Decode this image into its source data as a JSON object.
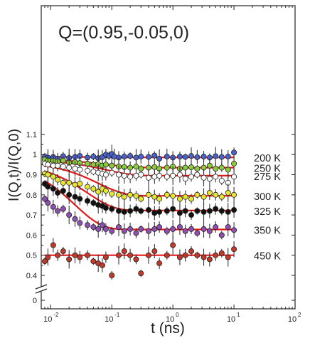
{
  "chart_data": {
    "type": "scatter",
    "title": "Q=(0.95,-0.05,0)",
    "xlabel": "t (ns)",
    "ylabel": "I(Q,t)/I(Q,0)",
    "xscale": "log",
    "xlim": [
      0.007,
      100
    ],
    "ylim": [
      0.37,
      1.15
    ],
    "y_axis_break": true,
    "x_ticks": [
      {
        "value": 0.01,
        "label": "10",
        "exp": "-2"
      },
      {
        "value": 0.1,
        "label": "10",
        "exp": "-1"
      },
      {
        "value": 1,
        "label": "10",
        "exp": "0"
      },
      {
        "value": 10,
        "label": "10",
        "exp": "1"
      },
      {
        "value": 100,
        "label": "10",
        "exp": "2"
      }
    ],
    "y_ticks": [
      {
        "value": 0.4,
        "label": "0.4"
      },
      {
        "value": 0.5,
        "label": "0.5"
      },
      {
        "value": 0.6,
        "label": "0.6"
      },
      {
        "value": 0.7,
        "label": "0.7"
      },
      {
        "value": 0.8,
        "label": "0.8"
      },
      {
        "value": 0.9,
        "label": "0.9"
      },
      {
        "value": 1.0,
        "label": "1"
      },
      {
        "value": 1.1,
        "label": "1.1"
      },
      {
        "value": 0.0,
        "label": "0",
        "break_position": 0.345
      }
    ],
    "grid": false,
    "series": [
      {
        "name": "200 K",
        "color": "#4a62c8",
        "fit": {
          "y0": 0.99,
          "yinf": 0.986,
          "tau": 0.05
        },
        "points": [
          [
            0.008,
            0.99
          ],
          [
            0.009,
            0.985
          ],
          [
            0.011,
            0.988
          ],
          [
            0.013,
            0.98
          ],
          [
            0.016,
            0.992
          ],
          [
            0.02,
            0.983
          ],
          [
            0.025,
            0.988
          ],
          [
            0.03,
            0.993
          ],
          [
            0.04,
            0.985
          ],
          [
            0.05,
            0.99
          ],
          [
            0.06,
            0.982
          ],
          [
            0.07,
            0.987
          ],
          [
            0.08,
            1.0
          ],
          [
            0.09,
            0.993
          ],
          [
            0.1,
            1.003
          ],
          [
            0.11,
            0.99
          ],
          [
            0.13,
            0.985
          ],
          [
            0.16,
            0.99
          ],
          [
            0.2,
            0.993
          ],
          [
            0.25,
            0.985
          ],
          [
            0.3,
            0.99
          ],
          [
            0.4,
            0.988
          ],
          [
            0.5,
            0.995
          ],
          [
            0.6,
            0.98
          ],
          [
            0.8,
            0.99
          ],
          [
            1.0,
            0.985
          ],
          [
            1.3,
            0.99
          ],
          [
            1.6,
            0.988
          ],
          [
            2.0,
            0.993
          ],
          [
            2.5,
            0.987
          ],
          [
            3.2,
            0.99
          ],
          [
            4.0,
            0.985
          ],
          [
            5.0,
            0.992
          ],
          [
            6.3,
            0.988
          ],
          [
            8.0,
            0.99
          ],
          [
            10.0,
            1.01
          ]
        ]
      },
      {
        "name": "250 K",
        "color": "#8ccc3c",
        "fit": {
          "y0": 0.978,
          "yinf": 0.935,
          "tau": 0.08
        },
        "points": [
          [
            0.008,
            0.975
          ],
          [
            0.009,
            0.97
          ],
          [
            0.011,
            0.97
          ],
          [
            0.013,
            0.965
          ],
          [
            0.016,
            0.97
          ],
          [
            0.02,
            0.96
          ],
          [
            0.025,
            0.962
          ],
          [
            0.03,
            0.958
          ],
          [
            0.04,
            0.955
          ],
          [
            0.05,
            0.95
          ],
          [
            0.06,
            0.952
          ],
          [
            0.07,
            0.945
          ],
          [
            0.08,
            0.95
          ],
          [
            0.1,
            0.945
          ],
          [
            0.13,
            0.94
          ],
          [
            0.16,
            0.938
          ],
          [
            0.2,
            0.935
          ],
          [
            0.25,
            0.94
          ],
          [
            0.3,
            0.93
          ],
          [
            0.4,
            0.935
          ],
          [
            0.5,
            0.938
          ],
          [
            0.6,
            0.93
          ],
          [
            0.8,
            0.935
          ],
          [
            1.0,
            0.94
          ],
          [
            1.3,
            0.93
          ],
          [
            1.6,
            0.935
          ],
          [
            2.0,
            0.937
          ],
          [
            2.5,
            0.93
          ],
          [
            3.2,
            0.935
          ],
          [
            4.0,
            0.945
          ],
          [
            5.0,
            0.93
          ],
          [
            6.3,
            0.935
          ],
          [
            8.0,
            0.925
          ],
          [
            10.0,
            0.955
          ]
        ]
      },
      {
        "name": "275 K",
        "color": "#ffffff",
        "fit": {
          "y0": 0.975,
          "yinf": 0.895,
          "tau": 0.08
        },
        "points": [
          [
            0.008,
            0.955
          ],
          [
            0.009,
            0.95
          ],
          [
            0.011,
            0.945
          ],
          [
            0.013,
            0.945
          ],
          [
            0.016,
            0.94
          ],
          [
            0.02,
            0.935
          ],
          [
            0.025,
            0.93
          ],
          [
            0.03,
            0.925
          ],
          [
            0.04,
            0.92
          ],
          [
            0.05,
            0.915
          ],
          [
            0.06,
            0.91
          ],
          [
            0.07,
            0.905
          ],
          [
            0.08,
            0.9
          ],
          [
            0.1,
            0.91
          ],
          [
            0.13,
            0.9
          ],
          [
            0.16,
            0.895
          ],
          [
            0.2,
            0.89
          ],
          [
            0.25,
            0.895
          ],
          [
            0.3,
            0.9
          ],
          [
            0.4,
            0.885
          ],
          [
            0.5,
            0.89
          ],
          [
            0.6,
            0.895
          ],
          [
            0.8,
            0.89
          ],
          [
            1.0,
            0.895
          ],
          [
            1.3,
            0.9
          ],
          [
            1.6,
            0.88
          ],
          [
            2.0,
            0.89
          ],
          [
            2.5,
            0.9
          ],
          [
            3.2,
            0.885
          ],
          [
            4.0,
            0.88
          ],
          [
            5.0,
            0.89
          ],
          [
            6.3,
            0.87
          ],
          [
            8.0,
            0.86
          ],
          [
            10.0,
            0.89
          ]
        ]
      },
      {
        "name": "300 K",
        "color": "#e6e632",
        "fit": {
          "y0": 0.965,
          "yinf": 0.795,
          "tau": 0.06
        },
        "points": [
          [
            0.008,
            0.905
          ],
          [
            0.009,
            0.9
          ],
          [
            0.011,
            0.89
          ],
          [
            0.013,
            0.875
          ],
          [
            0.016,
            0.86
          ],
          [
            0.02,
            0.86
          ],
          [
            0.025,
            0.85
          ],
          [
            0.03,
            0.855
          ],
          [
            0.04,
            0.84
          ],
          [
            0.05,
            0.83
          ],
          [
            0.06,
            0.815
          ],
          [
            0.07,
            0.83
          ],
          [
            0.08,
            0.82
          ],
          [
            0.1,
            0.805
          ],
          [
            0.13,
            0.8
          ],
          [
            0.16,
            0.79
          ],
          [
            0.2,
            0.8
          ],
          [
            0.25,
            0.795
          ],
          [
            0.3,
            0.78
          ],
          [
            0.4,
            0.8
          ],
          [
            0.5,
            0.79
          ],
          [
            0.6,
            0.78
          ],
          [
            0.8,
            0.8
          ],
          [
            1.0,
            0.795
          ],
          [
            1.3,
            0.78
          ],
          [
            1.6,
            0.79
          ],
          [
            2.0,
            0.78
          ],
          [
            2.5,
            0.8
          ],
          [
            3.2,
            0.79
          ],
          [
            4.0,
            0.81
          ],
          [
            5.0,
            0.8
          ],
          [
            6.3,
            0.79
          ],
          [
            8.0,
            0.81
          ],
          [
            10.0,
            0.8
          ]
        ]
      },
      {
        "name": "325 K",
        "color": "#111111",
        "fit": {
          "y0": 0.96,
          "yinf": 0.722,
          "tau": 0.04
        },
        "points": [
          [
            0.008,
            0.855
          ],
          [
            0.009,
            0.84
          ],
          [
            0.011,
            0.83
          ],
          [
            0.013,
            0.81
          ],
          [
            0.016,
            0.82
          ],
          [
            0.02,
            0.8
          ],
          [
            0.025,
            0.79
          ],
          [
            0.03,
            0.78
          ],
          [
            0.04,
            0.77
          ],
          [
            0.05,
            0.76
          ],
          [
            0.06,
            0.75
          ],
          [
            0.07,
            0.745
          ],
          [
            0.08,
            0.735
          ],
          [
            0.1,
            0.73
          ],
          [
            0.13,
            0.72
          ],
          [
            0.16,
            0.715
          ],
          [
            0.2,
            0.72
          ],
          [
            0.25,
            0.73
          ],
          [
            0.3,
            0.72
          ],
          [
            0.4,
            0.725
          ],
          [
            0.5,
            0.71
          ],
          [
            0.6,
            0.715
          ],
          [
            0.8,
            0.72
          ],
          [
            1.0,
            0.73
          ],
          [
            1.3,
            0.71
          ],
          [
            1.6,
            0.72
          ],
          [
            2.0,
            0.7
          ],
          [
            2.5,
            0.72
          ],
          [
            3.2,
            0.715
          ],
          [
            4.0,
            0.72
          ],
          [
            5.0,
            0.73
          ],
          [
            6.3,
            0.72
          ],
          [
            8.0,
            0.715
          ],
          [
            10.0,
            0.725
          ]
        ]
      },
      {
        "name": "350 K",
        "color": "#8e4fb0",
        "fit": {
          "y0": 0.96,
          "yinf": 0.628,
          "tau": 0.025
        },
        "points": [
          [
            0.008,
            0.78
          ],
          [
            0.009,
            0.76
          ],
          [
            0.011,
            0.74
          ],
          [
            0.013,
            0.72
          ],
          [
            0.016,
            0.73
          ],
          [
            0.02,
            0.7
          ],
          [
            0.025,
            0.68
          ],
          [
            0.03,
            0.66
          ],
          [
            0.04,
            0.65
          ],
          [
            0.05,
            0.64
          ],
          [
            0.06,
            0.63
          ],
          [
            0.07,
            0.65
          ],
          [
            0.08,
            0.63
          ],
          [
            0.1,
            0.62
          ],
          [
            0.13,
            0.64
          ],
          [
            0.16,
            0.62
          ],
          [
            0.2,
            0.63
          ],
          [
            0.25,
            0.61
          ],
          [
            0.3,
            0.63
          ],
          [
            0.4,
            0.62
          ],
          [
            0.5,
            0.63
          ],
          [
            0.6,
            0.64
          ],
          [
            0.8,
            0.62
          ],
          [
            1.0,
            0.63
          ],
          [
            1.3,
            0.64
          ],
          [
            1.6,
            0.62
          ],
          [
            2.0,
            0.63
          ],
          [
            2.5,
            0.61
          ],
          [
            3.2,
            0.63
          ],
          [
            4.0,
            0.62
          ],
          [
            5.0,
            0.64
          ],
          [
            6.3,
            0.6
          ],
          [
            8.0,
            0.64
          ],
          [
            10.0,
            0.625
          ]
        ]
      },
      {
        "name": "450 K",
        "color": "#c0392b",
        "fit": {
          "y0": 0.5,
          "yinf": 0.5,
          "tau": 0.05
        },
        "points": [
          [
            0.008,
            0.47
          ],
          [
            0.009,
            0.49
          ],
          [
            0.011,
            0.55
          ],
          [
            0.013,
            0.5
          ],
          [
            0.016,
            0.52
          ],
          [
            0.02,
            0.48
          ],
          [
            0.025,
            0.5
          ],
          [
            0.03,
            0.49
          ],
          [
            0.04,
            0.5
          ],
          [
            0.05,
            0.47
          ],
          [
            0.06,
            0.46
          ],
          [
            0.07,
            0.45
          ],
          [
            0.08,
            0.49
          ],
          [
            0.1,
            0.4
          ],
          [
            0.13,
            0.5
          ],
          [
            0.16,
            0.52
          ],
          [
            0.2,
            0.5
          ],
          [
            0.25,
            0.48
          ],
          [
            0.3,
            0.41
          ],
          [
            0.4,
            0.5
          ],
          [
            0.5,
            0.52
          ],
          [
            0.6,
            0.46
          ],
          [
            0.8,
            0.5
          ],
          [
            1.0,
            0.55
          ],
          [
            1.3,
            0.49
          ],
          [
            1.6,
            0.5
          ],
          [
            2.0,
            0.52
          ],
          [
            2.5,
            0.5
          ],
          [
            3.2,
            0.49
          ],
          [
            4.0,
            0.48
          ],
          [
            5.0,
            0.5
          ],
          [
            6.3,
            0.51
          ],
          [
            8.0,
            0.49
          ],
          [
            10.0,
            0.53
          ]
        ]
      }
    ]
  }
}
